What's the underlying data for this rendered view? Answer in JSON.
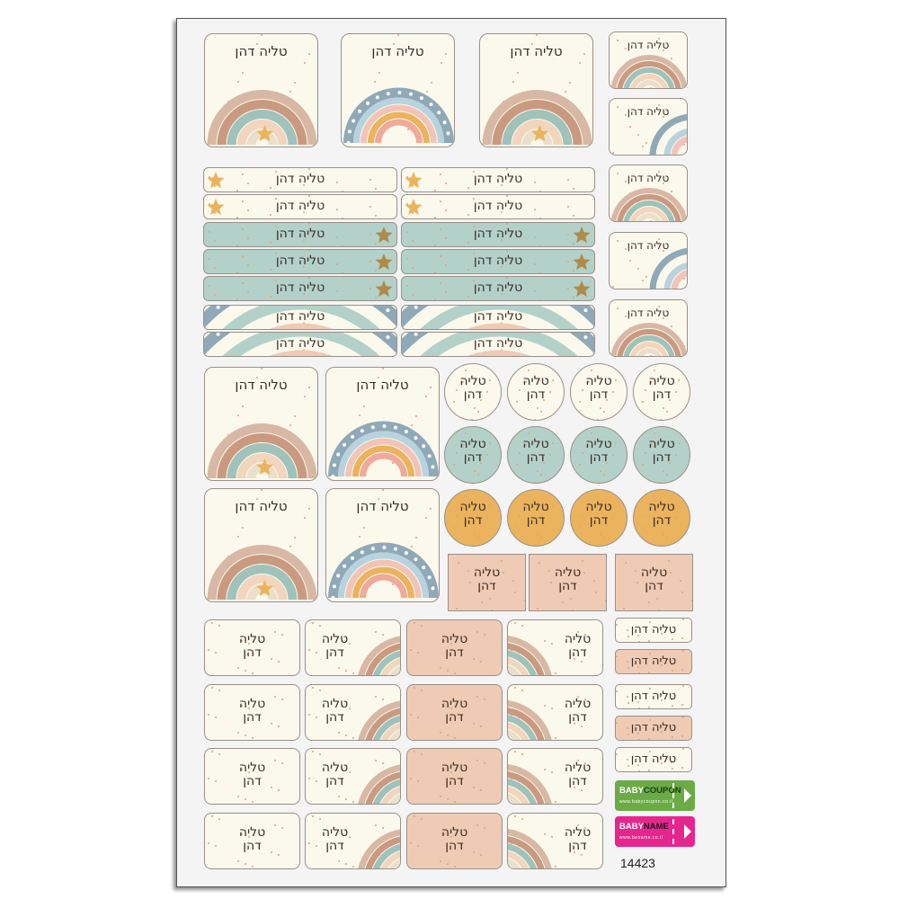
{
  "sticker_name_full": "טליה דהן",
  "sticker_first_name": "טליה",
  "sticker_last_name": "דהן",
  "product_code": "14423",
  "logos": [
    {
      "brand_a": "BABY",
      "brand_b": "COUPON",
      "url": "www.babycoupon.co.il",
      "color": "#6aab45"
    },
    {
      "brand_a": "BABY",
      "brand_b": "NAME",
      "url": "www.bename.co.il",
      "color": "#e6268f"
    }
  ],
  "colors": {
    "cream": "#fbf8ec",
    "sage": "#b3d1c9",
    "orange": "#ebb35d",
    "pink": "#efcab5",
    "blue": "#8fa9b8"
  }
}
